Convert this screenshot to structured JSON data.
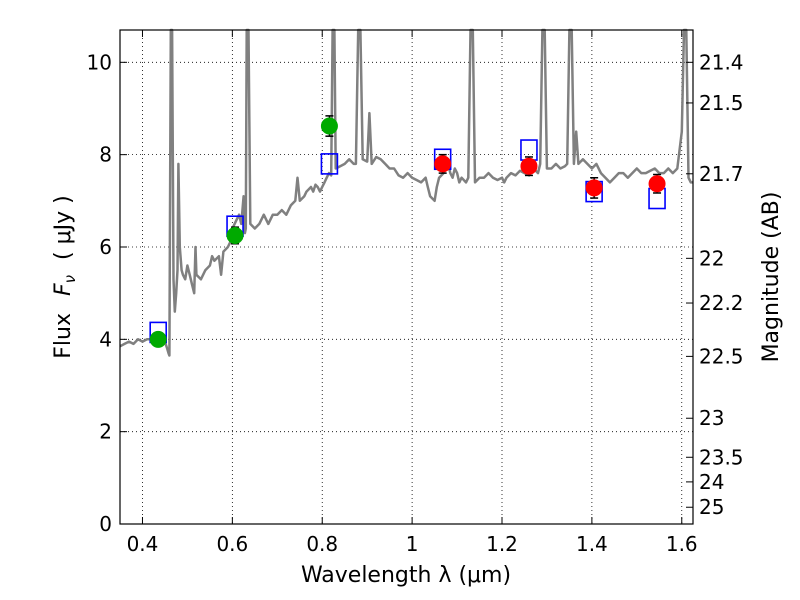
{
  "chart_data": {
    "type": "scatter",
    "xlabel": "Wavelength  λ (μm)",
    "ylabel_main": "Flux",
    "ylabel_symbol": "F",
    "ylabel_sub": "ν",
    "ylabel_unit": "( μJy )",
    "y2label": "Magnitude (AB)",
    "xlim": [
      0.35,
      1.625
    ],
    "ylim": [
      0,
      10.7
    ],
    "x_ticks": [
      {
        "value": 0.4,
        "label": "0.4"
      },
      {
        "value": 0.6,
        "label": "0.6"
      },
      {
        "value": 0.8,
        "label": "0.8"
      },
      {
        "value": 1.0,
        "label": "1"
      },
      {
        "value": 1.2,
        "label": "1.2"
      },
      {
        "value": 1.4,
        "label": "1.4"
      },
      {
        "value": 1.6,
        "label": "1.6"
      }
    ],
    "y_ticks": [
      {
        "value": 0,
        "label": "0"
      },
      {
        "value": 2,
        "label": "2"
      },
      {
        "value": 4,
        "label": "4"
      },
      {
        "value": 6,
        "label": "6"
      },
      {
        "value": 8,
        "label": "8"
      },
      {
        "value": 10,
        "label": "10"
      }
    ],
    "y2_ticks": [
      {
        "value": 21.4,
        "label": "21.4"
      },
      {
        "value": 21.5,
        "label": "21.5"
      },
      {
        "value": 21.7,
        "label": "21.7"
      },
      {
        "value": 22,
        "label": "22"
      },
      {
        "value": 22.2,
        "label": "22.2"
      },
      {
        "value": 22.5,
        "label": "22.5"
      },
      {
        "value": 23,
        "label": "23"
      },
      {
        "value": 23.5,
        "label": "23.5"
      },
      {
        "value": 24,
        "label": "24"
      },
      {
        "value": 25,
        "label": "25"
      }
    ],
    "grid": true,
    "colors": {
      "spectrum": "#808080",
      "model": "#0000ff",
      "optical": "#00aa00",
      "nir": "#ff0000",
      "errorbar": "#000000"
    },
    "series": [
      {
        "kind": "spectrum",
        "points": [
          [
            0.35,
            3.85
          ],
          [
            0.36,
            3.9
          ],
          [
            0.37,
            3.95
          ],
          [
            0.38,
            3.9
          ],
          [
            0.39,
            4.0
          ],
          [
            0.4,
            3.95
          ],
          [
            0.41,
            4.0
          ],
          [
            0.42,
            4.0
          ],
          [
            0.43,
            4.05
          ],
          [
            0.44,
            4.0
          ],
          [
            0.45,
            3.95
          ],
          [
            0.455,
            3.8
          ],
          [
            0.458,
            3.7
          ],
          [
            0.46,
            3.65
          ],
          [
            0.463,
            10.7
          ],
          [
            0.466,
            10.7
          ],
          [
            0.469,
            5.3
          ],
          [
            0.472,
            4.6
          ],
          [
            0.475,
            5.0
          ],
          [
            0.478,
            5.5
          ],
          [
            0.48,
            7.8
          ],
          [
            0.483,
            6.0
          ],
          [
            0.487,
            5.5
          ],
          [
            0.49,
            5.4
          ],
          [
            0.495,
            5.3
          ],
          [
            0.5,
            5.6
          ],
          [
            0.505,
            5.4
          ],
          [
            0.51,
            5.2
          ],
          [
            0.515,
            5.0
          ],
          [
            0.518,
            6.0
          ],
          [
            0.52,
            5.4
          ],
          [
            0.53,
            5.3
          ],
          [
            0.54,
            5.5
          ],
          [
            0.55,
            5.6
          ],
          [
            0.555,
            5.8
          ],
          [
            0.56,
            5.7
          ],
          [
            0.57,
            5.8
          ],
          [
            0.575,
            5.4
          ],
          [
            0.58,
            5.9
          ],
          [
            0.59,
            6.0
          ],
          [
            0.595,
            6.1
          ],
          [
            0.6,
            6.4
          ],
          [
            0.605,
            6.5
          ],
          [
            0.61,
            6.6
          ],
          [
            0.615,
            6.7
          ],
          [
            0.62,
            6.5
          ],
          [
            0.625,
            7.1
          ],
          [
            0.628,
            6.3
          ],
          [
            0.63,
            6.4
          ],
          [
            0.632,
            10.7
          ],
          [
            0.636,
            10.7
          ],
          [
            0.64,
            6.5
          ],
          [
            0.65,
            6.4
          ],
          [
            0.66,
            6.5
          ],
          [
            0.67,
            6.7
          ],
          [
            0.68,
            6.5
          ],
          [
            0.69,
            6.7
          ],
          [
            0.7,
            6.7
          ],
          [
            0.71,
            6.8
          ],
          [
            0.72,
            6.7
          ],
          [
            0.73,
            6.9
          ],
          [
            0.74,
            7.0
          ],
          [
            0.745,
            7.5
          ],
          [
            0.75,
            7.0
          ],
          [
            0.76,
            7.1
          ],
          [
            0.765,
            7.2
          ],
          [
            0.77,
            7.25
          ],
          [
            0.775,
            7.3
          ],
          [
            0.78,
            7.2
          ],
          [
            0.785,
            7.35
          ],
          [
            0.79,
            7.3
          ],
          [
            0.795,
            7.2
          ],
          [
            0.8,
            7.3
          ],
          [
            0.805,
            7.4
          ],
          [
            0.81,
            7.5
          ],
          [
            0.815,
            7.6
          ],
          [
            0.82,
            7.55
          ],
          [
            0.823,
            10.7
          ],
          [
            0.827,
            10.7
          ],
          [
            0.83,
            7.7
          ],
          [
            0.84,
            7.75
          ],
          [
            0.85,
            7.8
          ],
          [
            0.86,
            7.9
          ],
          [
            0.87,
            7.8
          ],
          [
            0.875,
            7.8
          ],
          [
            0.88,
            10.7
          ],
          [
            0.885,
            10.7
          ],
          [
            0.89,
            7.9
          ],
          [
            0.9,
            7.85
          ],
          [
            0.905,
            8.9
          ],
          [
            0.91,
            7.8
          ],
          [
            0.92,
            7.95
          ],
          [
            0.93,
            7.9
          ],
          [
            0.94,
            7.8
          ],
          [
            0.95,
            7.7
          ],
          [
            0.96,
            7.7
          ],
          [
            0.97,
            7.55
          ],
          [
            0.98,
            7.5
          ],
          [
            0.99,
            7.6
          ],
          [
            1.0,
            7.5
          ],
          [
            1.01,
            7.45
          ],
          [
            1.02,
            7.4
          ],
          [
            1.03,
            7.5
          ],
          [
            1.035,
            7.3
          ],
          [
            1.04,
            7.1
          ],
          [
            1.05,
            7.0
          ],
          [
            1.055,
            7.3
          ],
          [
            1.06,
            7.5
          ],
          [
            1.07,
            7.6
          ],
          [
            1.08,
            7.8
          ],
          [
            1.085,
            7.6
          ],
          [
            1.09,
            7.5
          ],
          [
            1.095,
            7.7
          ],
          [
            1.1,
            7.6
          ],
          [
            1.105,
            7.4
          ],
          [
            1.11,
            7.5
          ],
          [
            1.12,
            7.4
          ],
          [
            1.125,
            7.5
          ],
          [
            1.13,
            10.7
          ],
          [
            1.135,
            10.7
          ],
          [
            1.14,
            7.4
          ],
          [
            1.15,
            7.5
          ],
          [
            1.16,
            7.5
          ],
          [
            1.17,
            7.6
          ],
          [
            1.18,
            7.5
          ],
          [
            1.19,
            7.45
          ],
          [
            1.2,
            7.5
          ],
          [
            1.205,
            7.4
          ],
          [
            1.21,
            7.5
          ],
          [
            1.22,
            7.6
          ],
          [
            1.23,
            7.55
          ],
          [
            1.24,
            7.65
          ],
          [
            1.25,
            7.6
          ],
          [
            1.26,
            7.55
          ],
          [
            1.27,
            7.7
          ],
          [
            1.28,
            7.6
          ],
          [
            1.285,
            7.8
          ],
          [
            1.29,
            10.7
          ],
          [
            1.295,
            10.7
          ],
          [
            1.3,
            7.7
          ],
          [
            1.31,
            7.7
          ],
          [
            1.32,
            7.8
          ],
          [
            1.33,
            7.7
          ],
          [
            1.34,
            7.75
          ],
          [
            1.345,
            7.8
          ],
          [
            1.35,
            10.7
          ],
          [
            1.355,
            10.7
          ],
          [
            1.36,
            7.8
          ],
          [
            1.365,
            8.5
          ],
          [
            1.37,
            7.8
          ],
          [
            1.38,
            7.9
          ],
          [
            1.39,
            7.8
          ],
          [
            1.4,
            7.7
          ],
          [
            1.41,
            7.8
          ],
          [
            1.42,
            7.6
          ],
          [
            1.43,
            7.5
          ],
          [
            1.44,
            7.4
          ],
          [
            1.45,
            7.5
          ],
          [
            1.46,
            7.6
          ],
          [
            1.47,
            7.6
          ],
          [
            1.48,
            7.5
          ],
          [
            1.49,
            7.6
          ],
          [
            1.5,
            7.7
          ],
          [
            1.51,
            7.6
          ],
          [
            1.52,
            7.6
          ],
          [
            1.53,
            7.65
          ],
          [
            1.54,
            7.7
          ],
          [
            1.55,
            7.6
          ],
          [
            1.56,
            7.6
          ],
          [
            1.57,
            7.7
          ],
          [
            1.58,
            7.6
          ],
          [
            1.59,
            7.7
          ],
          [
            1.6,
            8.5
          ],
          [
            1.605,
            10.7
          ],
          [
            1.61,
            10.7
          ],
          [
            1.615,
            7.5
          ],
          [
            1.62,
            7.4
          ],
          [
            1.625,
            7.4
          ]
        ]
      },
      {
        "kind": "model",
        "marker": "open-square",
        "points": [
          {
            "x": 0.435,
            "y": 4.15
          },
          {
            "x": 0.606,
            "y": 6.45
          },
          {
            "x": 0.816,
            "y": 7.8
          },
          {
            "x": 1.068,
            "y": 7.9
          },
          {
            "x": 1.26,
            "y": 8.1
          },
          {
            "x": 1.405,
            "y": 7.2
          },
          {
            "x": 1.545,
            "y": 7.05
          }
        ]
      },
      {
        "kind": "optical",
        "marker": "filled-circle",
        "points": [
          {
            "x": 0.435,
            "y": 4.0,
            "err": 0.12
          },
          {
            "x": 0.606,
            "y": 6.25,
            "err": 0.18
          },
          {
            "x": 0.816,
            "y": 8.62,
            "err": 0.22
          }
        ]
      },
      {
        "kind": "nir",
        "marker": "filled-circle",
        "points": [
          {
            "x": 1.068,
            "y": 7.8,
            "err": 0.2
          },
          {
            "x": 1.26,
            "y": 7.75,
            "err": 0.2
          },
          {
            "x": 1.405,
            "y": 7.28,
            "err": 0.22
          },
          {
            "x": 1.545,
            "y": 7.37,
            "err": 0.2
          }
        ]
      }
    ]
  }
}
